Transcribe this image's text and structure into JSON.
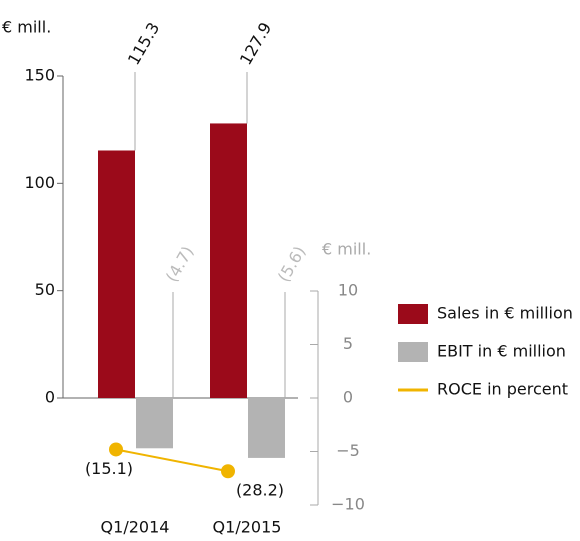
{
  "chart_data": {
    "type": "bar",
    "y_label": "€ mill.",
    "y2_label": "€ mill.",
    "categories": [
      "Q1/2014",
      "Q1/2015"
    ],
    "series": [
      {
        "name": "Sales in € million",
        "color": "#9b0a1a",
        "values": [
          115.3,
          127.9
        ]
      },
      {
        "name": "EBIT in € million",
        "color": "#b3b3b3",
        "axis": "y2",
        "values": [
          -4.7,
          -5.6
        ],
        "value_labels": [
          "(4.7)",
          "(5.6)"
        ]
      },
      {
        "name": "ROCE in percent",
        "type": "line",
        "color": "#f0b400",
        "axis": "y3",
        "values": [
          -15.1,
          -28.2
        ],
        "value_labels": [
          "(15.1)",
          "(28.2)"
        ]
      }
    ],
    "ylim": [
      0,
      150
    ],
    "yticks": [
      0,
      50,
      100,
      150
    ],
    "y2lim": [
      -10,
      10
    ],
    "y2ticks": [
      10,
      5,
      0,
      {
        "value": -5,
        "label": "−5"
      },
      {
        "value": -10,
        "label": "−10"
      }
    ],
    "y3lim": [
      -48.5,
      80.2
    ],
    "legend": "right"
  }
}
